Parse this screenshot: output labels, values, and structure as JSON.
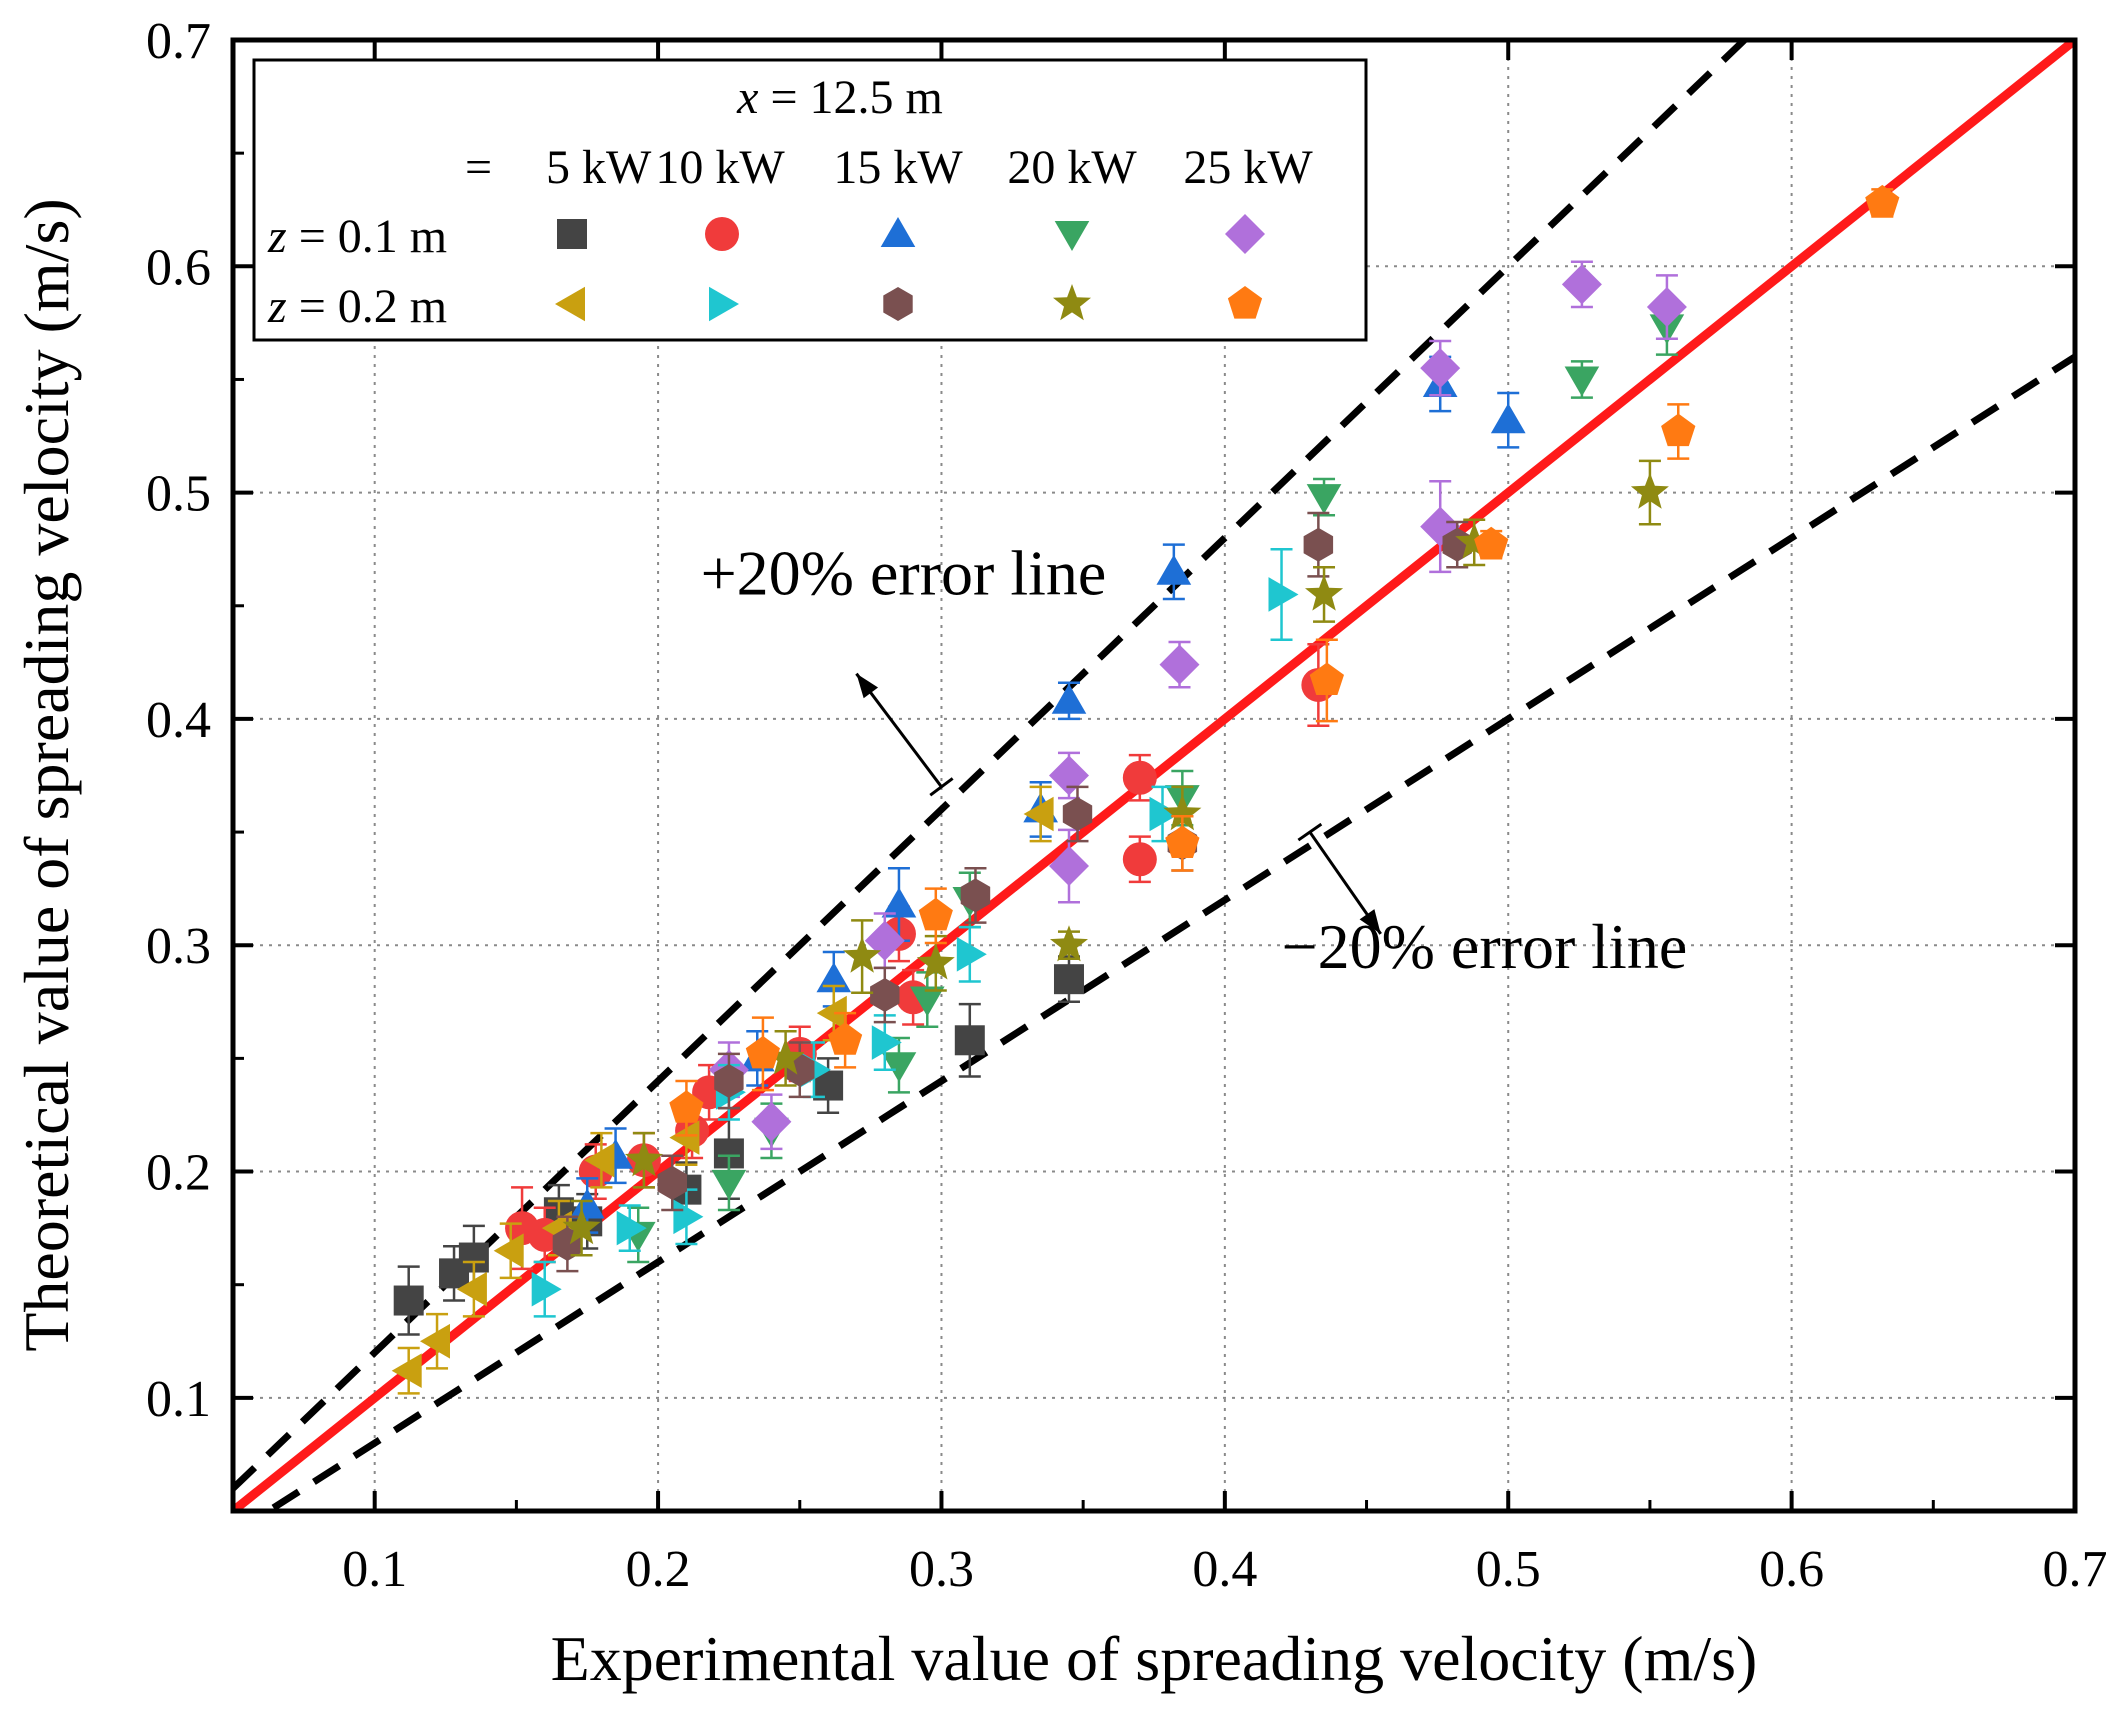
{
  "chart_data": {
    "type": "scatter",
    "xlabel": "Experimental value of spreading velocity (m/s)",
    "ylabel": "Theoretical value of spreading velocity (m/s)",
    "xlim": [
      0.05,
      0.7
    ],
    "ylim": [
      0.05,
      0.7
    ],
    "xticks": [
      0.1,
      0.2,
      0.3,
      0.4,
      0.5,
      0.6,
      0.7
    ],
    "yticks": [
      0.1,
      0.2,
      0.3,
      0.4,
      0.5,
      0.6,
      0.7
    ],
    "xtick_labels": [
      "0.1",
      "0.2",
      "0.3",
      "0.4",
      "0.5",
      "0.6",
      "0.7"
    ],
    "ytick_labels": [
      "0.1",
      "0.2",
      "0.3",
      "0.4",
      "0.5",
      "0.6",
      "0.7"
    ],
    "grid": true,
    "legend": {
      "placement": "top-left",
      "title_var": "x",
      "title_rest": " = 12.5 m",
      "col_header_prefix": "= ",
      "col_headers": [
        "5 kW",
        "10 kW",
        "15 kW",
        "20 kW",
        "25 kW"
      ],
      "row_labels": [
        {
          "var": "z",
          "rest": " = 0.1 m"
        },
        {
          "var": "z",
          "rest": " = 0.2 m"
        }
      ]
    },
    "reference_lines": [
      {
        "name": "y = x",
        "slope": 1.0,
        "color": "#ff1a1a",
        "style": "solid"
      },
      {
        "name": "+20% error line",
        "slope": 1.2,
        "color": "#000000",
        "style": "dashed"
      },
      {
        "name": "-20% error line",
        "slope": 0.8,
        "color": "#000000",
        "style": "dashed"
      }
    ],
    "annotations": [
      {
        "text": "+20% error line",
        "anchor": [
          0.215,
          0.455
        ],
        "arrow_from": [
          0.3,
          0.37
        ],
        "arrow_to": [
          0.27,
          0.42
        ]
      },
      {
        "text": "−20% error line",
        "anchor": [
          0.42,
          0.29
        ],
        "arrow_from": [
          0.43,
          0.35
        ],
        "arrow_to": [
          0.455,
          0.305
        ]
      }
    ],
    "series": [
      {
        "name": "z = 0.1 m, 5 kW",
        "marker": "square",
        "color": "#444444",
        "points": [
          [
            0.112,
            0.143
          ],
          [
            0.128,
            0.155
          ],
          [
            0.135,
            0.162
          ],
          [
            0.165,
            0.182
          ],
          [
            0.175,
            0.178
          ],
          [
            0.21,
            0.192
          ],
          [
            0.225,
            0.208
          ],
          [
            0.26,
            0.238
          ],
          [
            0.31,
            0.258
          ],
          [
            0.345,
            0.285
          ]
        ],
        "err": [
          0.015,
          0.012,
          0.014,
          0.012,
          0.012,
          0.012,
          0.02,
          0.012,
          0.016,
          0.01
        ]
      },
      {
        "name": "z = 0.1 m, 10 kW",
        "marker": "circle",
        "color": "#f03b3b",
        "points": [
          [
            0.152,
            0.175
          ],
          [
            0.16,
            0.172
          ],
          [
            0.178,
            0.2
          ],
          [
            0.195,
            0.205
          ],
          [
            0.212,
            0.218
          ],
          [
            0.218,
            0.235
          ],
          [
            0.25,
            0.252
          ],
          [
            0.285,
            0.305
          ],
          [
            0.29,
            0.277
          ],
          [
            0.37,
            0.338
          ],
          [
            0.37,
            0.374
          ],
          [
            0.433,
            0.415
          ]
        ],
        "err": [
          0.018,
          0.012,
          0.012,
          0.012,
          0.012,
          0.012,
          0.012,
          0.012,
          0.012,
          0.01,
          0.01,
          0.018
        ]
      },
      {
        "name": "z = 0.1 m, 15 kW",
        "marker": "triangle-up",
        "color": "#1e6fd6",
        "points": [
          [
            0.175,
            0.185
          ],
          [
            0.185,
            0.207
          ],
          [
            0.235,
            0.25
          ],
          [
            0.262,
            0.285
          ],
          [
            0.285,
            0.318
          ],
          [
            0.335,
            0.36
          ],
          [
            0.345,
            0.408
          ],
          [
            0.382,
            0.465
          ],
          [
            0.476,
            0.548
          ],
          [
            0.5,
            0.532
          ]
        ],
        "err": [
          0.012,
          0.012,
          0.012,
          0.012,
          0.016,
          0.012,
          0.008,
          0.012,
          0.012,
          0.012
        ]
      },
      {
        "name": "z = 0.1 m, 20 kW",
        "marker": "triangle-down",
        "color": "#3aa562",
        "points": [
          [
            0.193,
            0.172
          ],
          [
            0.225,
            0.195
          ],
          [
            0.24,
            0.218
          ],
          [
            0.285,
            0.247
          ],
          [
            0.295,
            0.276
          ],
          [
            0.31,
            0.32
          ],
          [
            0.385,
            0.365
          ],
          [
            0.435,
            0.498
          ],
          [
            0.526,
            0.55
          ],
          [
            0.556,
            0.573
          ]
        ],
        "err": [
          0.012,
          0.012,
          0.012,
          0.012,
          0.012,
          0.012,
          0.012,
          0.008,
          0.008,
          0.012
        ]
      },
      {
        "name": "z = 0.1 m, 25 kW",
        "marker": "diamond",
        "color": "#b070db",
        "points": [
          [
            0.225,
            0.245
          ],
          [
            0.24,
            0.222
          ],
          [
            0.28,
            0.302
          ],
          [
            0.345,
            0.375
          ],
          [
            0.345,
            0.335
          ],
          [
            0.384,
            0.424
          ],
          [
            0.476,
            0.555
          ],
          [
            0.476,
            0.485
          ],
          [
            0.526,
            0.592
          ],
          [
            0.556,
            0.582
          ]
        ],
        "err": [
          0.012,
          0.012,
          0.012,
          0.01,
          0.016,
          0.01,
          0.012,
          0.02,
          0.01,
          0.014
        ]
      },
      {
        "name": "z = 0.2 m, 5 kW",
        "marker": "triangle-left",
        "color": "#c9a010",
        "points": [
          [
            0.112,
            0.112
          ],
          [
            0.122,
            0.125
          ],
          [
            0.135,
            0.148
          ],
          [
            0.148,
            0.165
          ],
          [
            0.165,
            0.175
          ],
          [
            0.18,
            0.205
          ],
          [
            0.21,
            0.215
          ],
          [
            0.262,
            0.27
          ],
          [
            0.335,
            0.358
          ]
        ],
        "err": [
          0.01,
          0.012,
          0.012,
          0.012,
          0.012,
          0.012,
          0.012,
          0.012,
          0.012
        ]
      },
      {
        "name": "z = 0.2 m, 10 kW",
        "marker": "triangle-right",
        "color": "#1fc6d0",
        "points": [
          [
            0.16,
            0.148
          ],
          [
            0.19,
            0.175
          ],
          [
            0.21,
            0.18
          ],
          [
            0.225,
            0.235
          ],
          [
            0.255,
            0.245
          ],
          [
            0.28,
            0.257
          ],
          [
            0.31,
            0.296
          ],
          [
            0.378,
            0.358
          ],
          [
            0.42,
            0.455
          ]
        ],
        "err": [
          0.012,
          0.01,
          0.012,
          0.012,
          0.012,
          0.012,
          0.012,
          0.012,
          0.02
        ]
      },
      {
        "name": "z = 0.2 m, 15 kW",
        "marker": "hexagon",
        "color": "#7a5050",
        "points": [
          [
            0.168,
            0.168
          ],
          [
            0.205,
            0.195
          ],
          [
            0.225,
            0.24
          ],
          [
            0.25,
            0.245
          ],
          [
            0.28,
            0.278
          ],
          [
            0.312,
            0.322
          ],
          [
            0.348,
            0.358
          ],
          [
            0.385,
            0.345
          ],
          [
            0.433,
            0.477
          ],
          [
            0.482,
            0.477
          ]
        ],
        "err": [
          0.012,
          0.012,
          0.012,
          0.012,
          0.012,
          0.012,
          0.012,
          0.012,
          0.014,
          0.01
        ]
      },
      {
        "name": "z = 0.2 m, 20 kW",
        "marker": "star",
        "color": "#8f8a12",
        "points": [
          [
            0.173,
            0.175
          ],
          [
            0.195,
            0.205
          ],
          [
            0.245,
            0.25
          ],
          [
            0.272,
            0.295
          ],
          [
            0.298,
            0.292
          ],
          [
            0.345,
            0.3
          ],
          [
            0.385,
            0.358
          ],
          [
            0.435,
            0.455
          ],
          [
            0.488,
            0.478
          ],
          [
            0.55,
            0.5
          ]
        ],
        "err": [
          0.012,
          0.012,
          0.012,
          0.016,
          0.012,
          0.006,
          0.012,
          0.012,
          0.01,
          0.014
        ]
      },
      {
        "name": "z = 0.2 m, 25 kW",
        "marker": "pentagon",
        "color": "#ff7a12",
        "points": [
          [
            0.21,
            0.228
          ],
          [
            0.237,
            0.252
          ],
          [
            0.266,
            0.258
          ],
          [
            0.298,
            0.313
          ],
          [
            0.385,
            0.345
          ],
          [
            0.436,
            0.417
          ],
          [
            0.494,
            0.477
          ],
          [
            0.56,
            0.527
          ],
          [
            0.632,
            0.628
          ]
        ],
        "err": [
          0.012,
          0.016,
          0.012,
          0.012,
          0.012,
          0.018,
          0.006,
          0.012,
          0.006
        ]
      }
    ]
  }
}
